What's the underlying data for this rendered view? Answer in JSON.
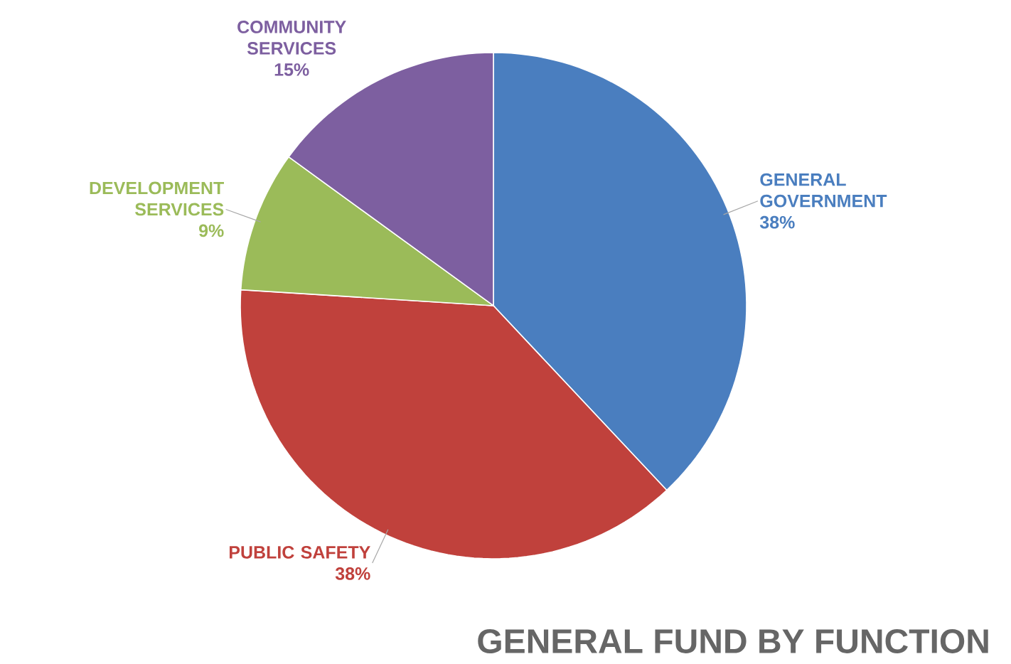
{
  "chart_data": {
    "type": "pie",
    "title": "GENERAL FUND BY FUNCTION",
    "categories": [
      "GENERAL GOVERNMENT",
      "PUBLIC SAFETY",
      "DEVELOPMENT SERVICES",
      "COMMUNITY SERVICES"
    ],
    "values": [
      38,
      38,
      9,
      15
    ],
    "value_labels": [
      "38%",
      "38%",
      "9%",
      "15%"
    ],
    "colors": [
      "#4a7ebf",
      "#c0413c",
      "#9bbb59",
      "#7d5fa0"
    ]
  }
}
